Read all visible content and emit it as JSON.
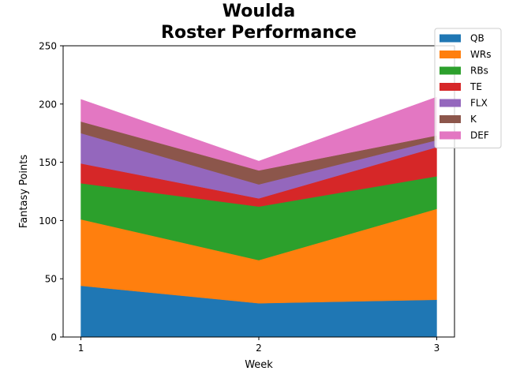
{
  "chart_data": {
    "type": "area",
    "title_lines": [
      "Woulda",
      "Roster Performance"
    ],
    "xlabel": "Week",
    "ylabel": "Fantasy Points",
    "x": [
      1,
      2,
      3
    ],
    "x_ticks": [
      "1",
      "2",
      "3"
    ],
    "xlim": [
      0.9,
      3.1
    ],
    "ylim": [
      0,
      250
    ],
    "y_ticks": [
      0,
      50,
      100,
      150,
      200,
      250
    ],
    "stacked": true,
    "grid": false,
    "legend_position": "top-right",
    "series": [
      {
        "name": "QB",
        "color": "#1f77b4",
        "values": [
          44,
          29,
          32
        ]
      },
      {
        "name": "WRs",
        "color": "#ff7f0e",
        "values": [
          57,
          37,
          78
        ]
      },
      {
        "name": "RBs",
        "color": "#2ca02c",
        "values": [
          31,
          46,
          28
        ]
      },
      {
        "name": "TE",
        "color": "#d62728",
        "values": [
          17,
          7,
          25
        ]
      },
      {
        "name": "FLX",
        "color": "#9467bd",
        "values": [
          26,
          12,
          6
        ]
      },
      {
        "name": "K",
        "color": "#8c564b",
        "values": [
          10,
          12,
          4
        ]
      },
      {
        "name": "DEF",
        "color": "#e377c2",
        "values": [
          19,
          8,
          33
        ]
      }
    ]
  }
}
